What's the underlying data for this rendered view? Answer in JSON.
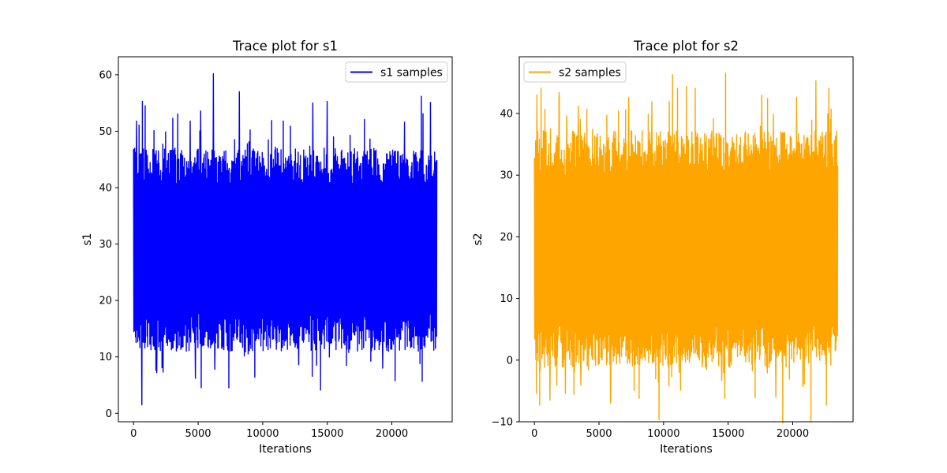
{
  "chart_data": [
    {
      "type": "line",
      "title": "Trace plot for s1",
      "xlabel": "Iterations",
      "ylabel": "s1",
      "xlim": [
        -1175,
        24675
      ],
      "ylim": [
        -1.5,
        63.2
      ],
      "xticks": [
        0,
        5000,
        10000,
        15000,
        20000
      ],
      "xtick_labels": [
        "0",
        "5000",
        "10000",
        "15000",
        "20000"
      ],
      "yticks": [
        0,
        10,
        20,
        30,
        40,
        50,
        60
      ],
      "ytick_labels": [
        "0",
        "10",
        "20",
        "30",
        "40",
        "50",
        "60"
      ],
      "n_samples": 23500,
      "series": [
        {
          "name": "s1 samples",
          "color": "#0000ff",
          "band_low": 14,
          "band_high": 44,
          "spikes_high": [
            [
              250,
              51.8
            ],
            [
              700,
              55.3
            ],
            [
              900,
              54.5
            ],
            [
              1600,
              50.1
            ],
            [
              4400,
              51.8
            ],
            [
              5200,
              53.6
            ],
            [
              6200,
              60.2
            ],
            [
              8200,
              57.0
            ],
            [
              10700,
              51.9
            ],
            [
              11600,
              51.8
            ],
            [
              13900,
              55.0
            ],
            [
              15000,
              55.3
            ],
            [
              17900,
              52.1
            ],
            [
              21000,
              51.6
            ],
            [
              22300,
              56.2
            ],
            [
              23000,
              55.1
            ]
          ],
          "spikes_low": [
            [
              650,
              1.5
            ],
            [
              1800,
              7.2
            ],
            [
              2300,
              7.3
            ],
            [
              4800,
              6.2
            ],
            [
              6300,
              7.8
            ],
            [
              7400,
              4.5
            ],
            [
              9400,
              6.4
            ],
            [
              12800,
              8.6
            ],
            [
              16500,
              8.5
            ],
            [
              19300,
              8.0
            ],
            [
              22200,
              8.8
            ]
          ]
        }
      ],
      "legend": "top-right",
      "grid": false
    },
    {
      "type": "line",
      "title": "Trace plot for s2",
      "xlabel": "Iterations",
      "ylabel": "s2",
      "xlim": [
        -1175,
        24675
      ],
      "ylim": [
        -10,
        49.2
      ],
      "xticks": [
        0,
        5000,
        10000,
        15000,
        20000
      ],
      "xtick_labels": [
        "0",
        "5000",
        "10000",
        "15000",
        "20000"
      ],
      "yticks": [
        -10,
        0,
        10,
        20,
        30,
        40
      ],
      "ytick_labels": [
        "−10",
        "0",
        "10",
        "20",
        "30",
        "40"
      ],
      "n_samples": 23500,
      "series": [
        {
          "name": "s2 samples",
          "color": "#ffa500",
          "band_low": 2,
          "band_high": 34,
          "spikes_high": [
            [
              200,
              43.0
            ],
            [
              1900,
              43.4
            ],
            [
              2500,
              39.6
            ],
            [
              3400,
              41.2
            ],
            [
              5600,
              39.7
            ],
            [
              7300,
              42.6
            ],
            [
              9100,
              41.9
            ],
            [
              10700,
              46.3
            ],
            [
              14800,
              46.5
            ],
            [
              17600,
              43.0
            ],
            [
              18500,
              39.9
            ],
            [
              20300,
              42.6
            ],
            [
              21800,
              45.3
            ],
            [
              22800,
              44.1
            ]
          ],
          "spikes_low": [
            [
              400,
              -7.3
            ],
            [
              1200,
              -6.5
            ],
            [
              2400,
              -5.4
            ],
            [
              3600,
              -4.1
            ],
            [
              5900,
              -7.0
            ],
            [
              8100,
              -6.2
            ],
            [
              9600,
              -3.5
            ],
            [
              11200,
              -2.0
            ],
            [
              14500,
              -3.3
            ],
            [
              17100,
              -6.1
            ],
            [
              18700,
              -6.0
            ],
            [
              20800,
              -4.3
            ],
            [
              22600,
              -7.3
            ]
          ]
        }
      ],
      "legend": "top-left",
      "grid": false
    }
  ]
}
